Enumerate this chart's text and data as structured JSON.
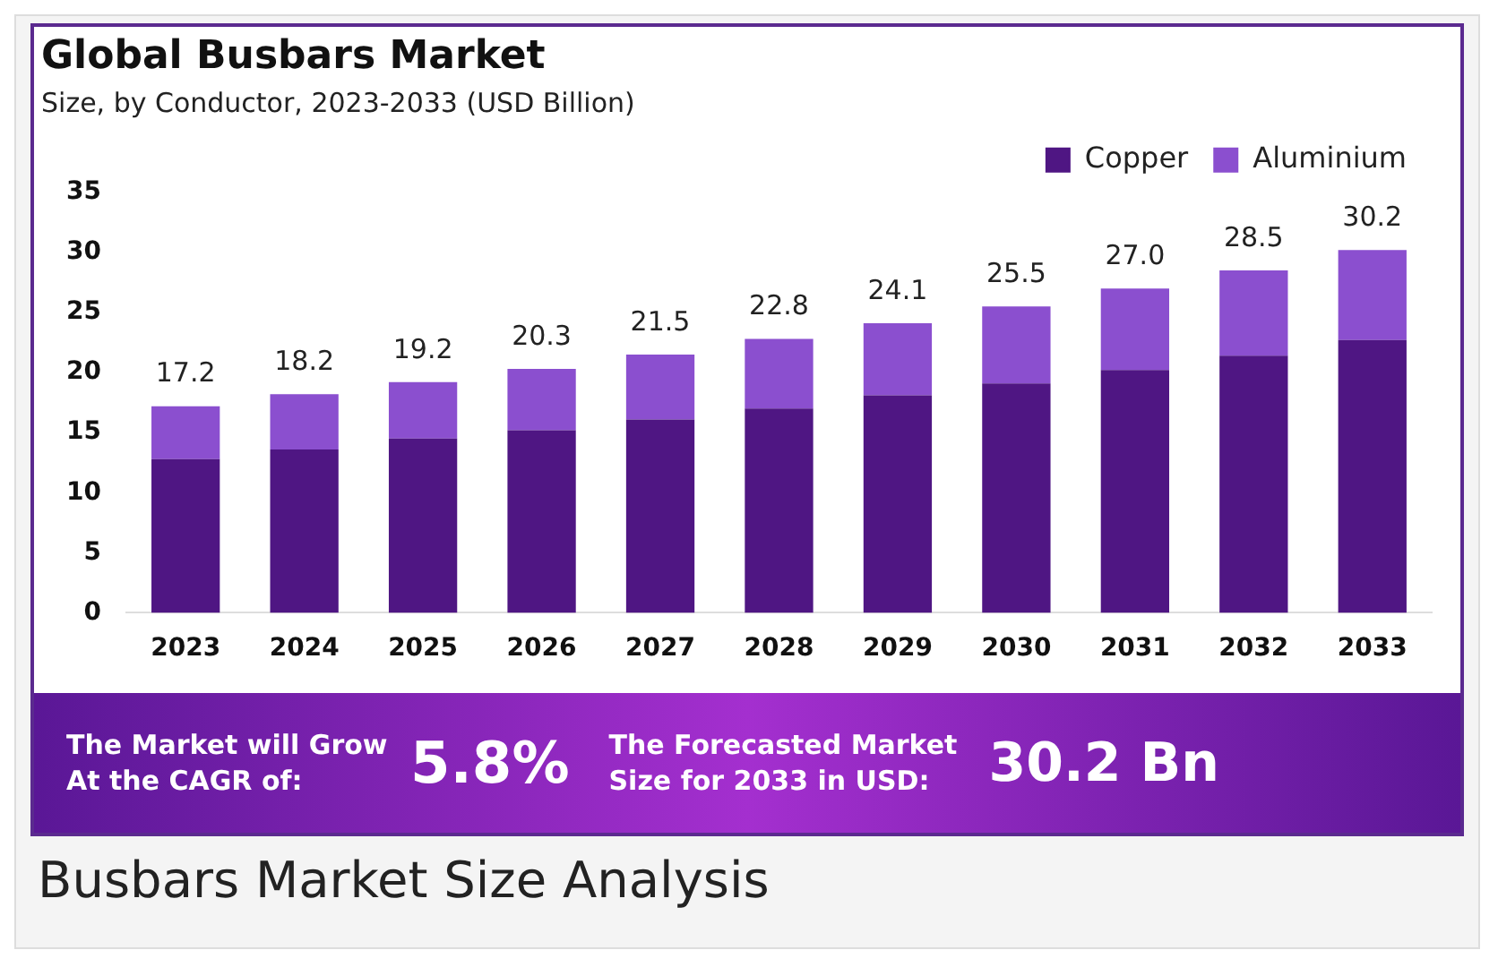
{
  "chart_data": {
    "type": "bar",
    "title": "Global Busbars Market",
    "subtitle": "Size, by Conductor, 2023-2033 (USD Billion)",
    "categories": [
      "2023",
      "2024",
      "2025",
      "2026",
      "2027",
      "2028",
      "2029",
      "2030",
      "2031",
      "2032",
      "2033"
    ],
    "series": [
      {
        "name": "Copper",
        "color": "#4f1683",
        "values": [
          12.8,
          13.6,
          14.5,
          15.2,
          16.1,
          17.0,
          18.1,
          19.1,
          20.2,
          21.4,
          22.7
        ]
      },
      {
        "name": "Aluminium",
        "color": "#8b4fcf",
        "values": [
          4.4,
          4.6,
          4.7,
          5.1,
          5.4,
          5.8,
          6.0,
          6.4,
          6.8,
          7.1,
          7.5
        ]
      }
    ],
    "stacked": true,
    "totals": [
      "17.2",
      "18.2",
      "19.2",
      "20.3",
      "21.5",
      "22.8",
      "24.1",
      "25.5",
      "27.0",
      "28.5",
      "30.2"
    ],
    "ylim": [
      0,
      35
    ],
    "yticks": [
      0,
      5,
      10,
      15,
      20,
      25,
      30,
      35
    ],
    "grid": false,
    "legend": "top right",
    "annotations": [
      "The Market will Grow At the CAGR of:",
      "5.8%",
      "The Forecasted Market Size for 2033 in USD:",
      "30.2 Bn",
      "Busbars Market Size Analysis"
    ]
  }
}
